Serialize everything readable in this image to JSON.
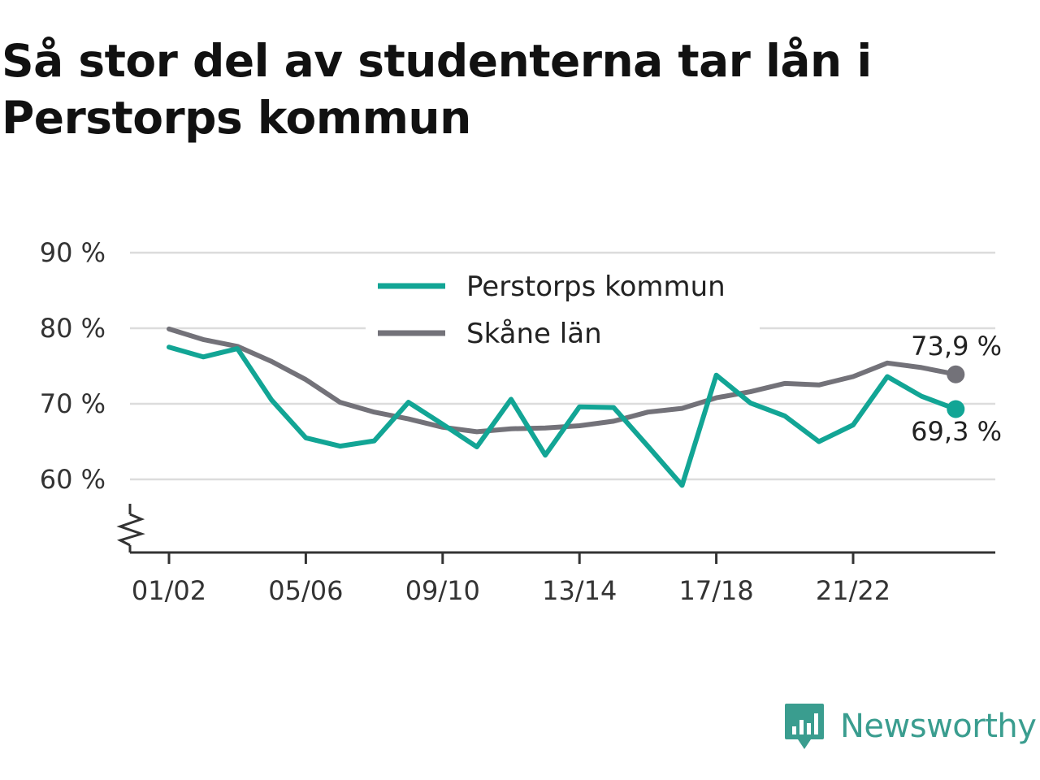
{
  "title": "Så stor del av studenterna tar lån i Perstorps kommun",
  "brand": {
    "name": "Newsworthy",
    "icon": "newsworthy-logo-icon",
    "color": "#3a9d8f"
  },
  "colors": {
    "perstorp": "#12a595",
    "skane": "#737279",
    "grid": "#dcdcdc",
    "axis": "#333333"
  },
  "chart_data": {
    "type": "line",
    "ylim": [
      50,
      90
    ],
    "y_ticks": [
      60,
      70,
      80,
      90
    ],
    "y_tick_labels": [
      "60 %",
      "70 %",
      "80 %",
      "90 %"
    ],
    "y_axis_break": true,
    "grid": true,
    "legend_position": "top-center",
    "x": [
      "01/02",
      "02/03",
      "03/04",
      "04/05",
      "05/06",
      "06/07",
      "07/08",
      "08/09",
      "09/10",
      "10/11",
      "11/12",
      "12/13",
      "13/14",
      "14/15",
      "15/16",
      "16/17",
      "17/18",
      "18/19",
      "19/20",
      "20/21",
      "21/22",
      "22/23",
      "23/24",
      "24/25"
    ],
    "x_tick_labels": [
      "01/02",
      "05/06",
      "09/10",
      "13/14",
      "17/18",
      "21/22"
    ],
    "series": [
      {
        "name": "Perstorps kommun",
        "color": "#12a595",
        "values": [
          77.5,
          76.2,
          77.3,
          70.5,
          65.5,
          64.4,
          65.1,
          70.2,
          67.3,
          64.3,
          70.6,
          63.2,
          69.6,
          69.5,
          64.4,
          59.2,
          73.8,
          70.1,
          68.4,
          65.0,
          67.2,
          73.6,
          71.0,
          69.3
        ],
        "end_label": "69,3 %"
      },
      {
        "name": "Skåne län",
        "color": "#737279",
        "values": [
          79.9,
          78.5,
          77.6,
          75.6,
          73.2,
          70.2,
          68.9,
          68.0,
          66.9,
          66.3,
          66.7,
          66.8,
          67.1,
          67.7,
          68.9,
          69.4,
          70.8,
          71.6,
          72.7,
          72.5,
          73.6,
          75.4,
          74.8,
          73.9
        ],
        "end_label": "73,9 %"
      }
    ]
  }
}
